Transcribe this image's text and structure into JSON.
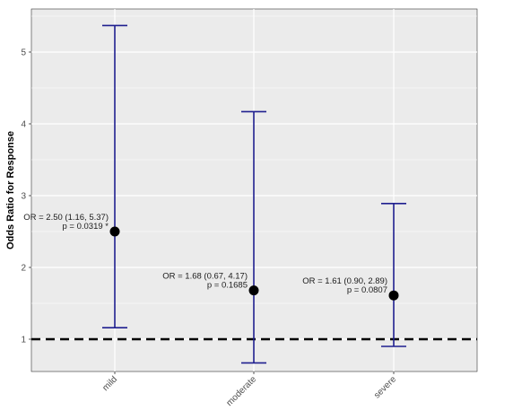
{
  "chart_data": {
    "type": "forest",
    "title": "",
    "xlabel": "",
    "ylabel": "Odds Ratio for Response",
    "ylim": [
      0.55,
      5.6
    ],
    "yticks": [
      1,
      2,
      3,
      4,
      5
    ],
    "yticks_labels": [
      "1",
      "2",
      "3",
      "4",
      "5"
    ],
    "grid": true,
    "reference_line": 1,
    "categories": [
      "mild",
      "moderate",
      "severe"
    ],
    "points": [
      {
        "category": "mild",
        "or": 2.5,
        "lower": 1.16,
        "upper": 5.37,
        "label_line1": "OR = 2.50 (1.16, 5.37)",
        "label_line2": "p = 0.0319 *"
      },
      {
        "category": "moderate",
        "or": 1.68,
        "lower": 0.67,
        "upper": 4.17,
        "label_line1": "OR = 1.68 (0.67, 4.17)",
        "label_line2": "p = 0.1685"
      },
      {
        "category": "severe",
        "or": 1.61,
        "lower": 0.9,
        "upper": 2.89,
        "label_line1": "OR = 1.61 (0.90, 2.89)",
        "label_line2": "p = 0.0807"
      }
    ],
    "colors": {
      "panel_background": "#ebebeb",
      "grid": "#ffffff",
      "errorbar": "#1f1f8f",
      "point": "#000000",
      "reference_line": "#000000"
    }
  }
}
